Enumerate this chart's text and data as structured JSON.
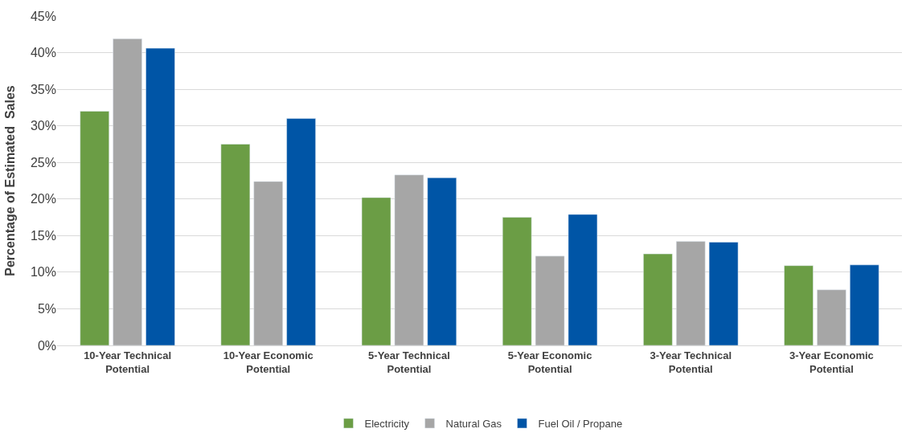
{
  "chart_data": {
    "type": "bar",
    "ylabel": "Percentage of Estimated  Sales",
    "categories": [
      "10-Year Technical Potential",
      "10-Year Economic Potential",
      "5-Year Technical Potential",
      "5-Year Economic Potential",
      "3-Year Technical Potential",
      "3-Year Economic Potential"
    ],
    "series": [
      {
        "name": "Electricity",
        "color": "#6b9d45",
        "values": [
          32.0,
          27.5,
          20.2,
          17.5,
          12.5,
          10.9
        ]
      },
      {
        "name": "Natural Gas",
        "color": "#a6a6a6",
        "values": [
          41.9,
          22.4,
          23.3,
          12.2,
          14.2,
          7.6
        ]
      },
      {
        "name": "Fuel Oil / Propane",
        "color": "#0055a6",
        "values": [
          40.6,
          31.0,
          22.9,
          17.9,
          14.1,
          11.0
        ]
      }
    ],
    "ylim": [
      0,
      45
    ],
    "yticks": [
      {
        "value": 0,
        "label": "0%"
      },
      {
        "value": 5,
        "label": "5%"
      },
      {
        "value": 10,
        "label": "10%"
      },
      {
        "value": 15,
        "label": "15%"
      },
      {
        "value": 20,
        "label": "20%"
      },
      {
        "value": 25,
        "label": "25%"
      },
      {
        "value": 30,
        "label": "30%"
      },
      {
        "value": 35,
        "label": "35%"
      },
      {
        "value": 40,
        "label": "40%"
      },
      {
        "value": 45,
        "label": "45%"
      }
    ],
    "grid": "y",
    "legend": "bottom"
  }
}
